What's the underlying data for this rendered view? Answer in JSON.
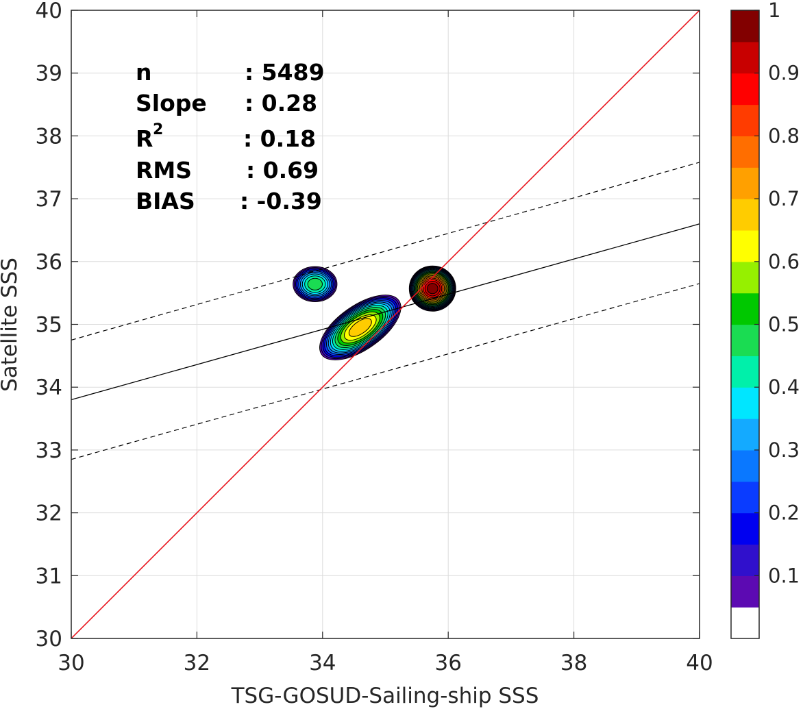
{
  "chart_data": {
    "type": "contour",
    "xlabel": "TSG-GOSUD-Sailing-ship SSS",
    "ylabel": "Satellite SSS",
    "xlim": [
      30,
      40
    ],
    "ylim": [
      30,
      40
    ],
    "x_ticks": [
      "30",
      "32",
      "34",
      "36",
      "38",
      "40"
    ],
    "y_ticks": [
      "30",
      "31",
      "32",
      "33",
      "34",
      "35",
      "36",
      "37",
      "38",
      "39",
      "40"
    ],
    "grid": true,
    "stats": [
      {
        "label": "n",
        "value": ": 5489"
      },
      {
        "label": "Slope",
        "value": ": 0.28"
      },
      {
        "label": "R",
        "sup": "2",
        "value": ": 0.18"
      },
      {
        "label": "RMS",
        "value": ": 0.69"
      },
      {
        "label": "BIAS",
        "value": ": -0.39"
      }
    ],
    "one_to_one_line": {
      "color": "#e8141c",
      "points": [
        [
          30,
          30
        ],
        [
          40,
          40
        ]
      ]
    },
    "regression_line": {
      "points": [
        [
          30,
          33.8
        ],
        [
          40,
          36.6
        ]
      ]
    },
    "confidence_upper": {
      "points": [
        [
          30,
          34.75
        ],
        [
          40,
          37.58
        ]
      ]
    },
    "confidence_lower": {
      "points": [
        [
          30,
          32.85
        ],
        [
          40,
          35.65
        ]
      ]
    },
    "density_clusters": [
      {
        "name": "main",
        "cx": 34.6,
        "cy": 34.95,
        "rx": 0.75,
        "ry": 0.35,
        "angle_deg": 35,
        "peak": 0.7
      },
      {
        "name": "right",
        "cx": 35.75,
        "cy": 35.57,
        "rx": 0.37,
        "ry": 0.36,
        "angle_deg": 0,
        "peak": 1.0
      },
      {
        "name": "left",
        "cx": 33.88,
        "cy": 35.64,
        "rx": 0.35,
        "ry": 0.28,
        "angle_deg": 0,
        "peak": 0.45
      }
    ],
    "colorbar": {
      "range": [
        0,
        1
      ],
      "ticks": [
        "0.1",
        "0.2",
        "0.3",
        "0.4",
        "0.5",
        "0.6",
        "0.7",
        "0.8",
        "0.9",
        "1"
      ],
      "colors": [
        "#ffffff",
        "#5c0ab2",
        "#3010cc",
        "#0000f0",
        "#0a3cff",
        "#0a78ff",
        "#14aaff",
        "#00e6ff",
        "#00f0aa",
        "#1adc52",
        "#00c800",
        "#96f000",
        "#ffff00",
        "#ffcc00",
        "#ffa000",
        "#ff6e00",
        "#ff3c00",
        "#ff0000",
        "#c80000",
        "#820000"
      ]
    }
  }
}
